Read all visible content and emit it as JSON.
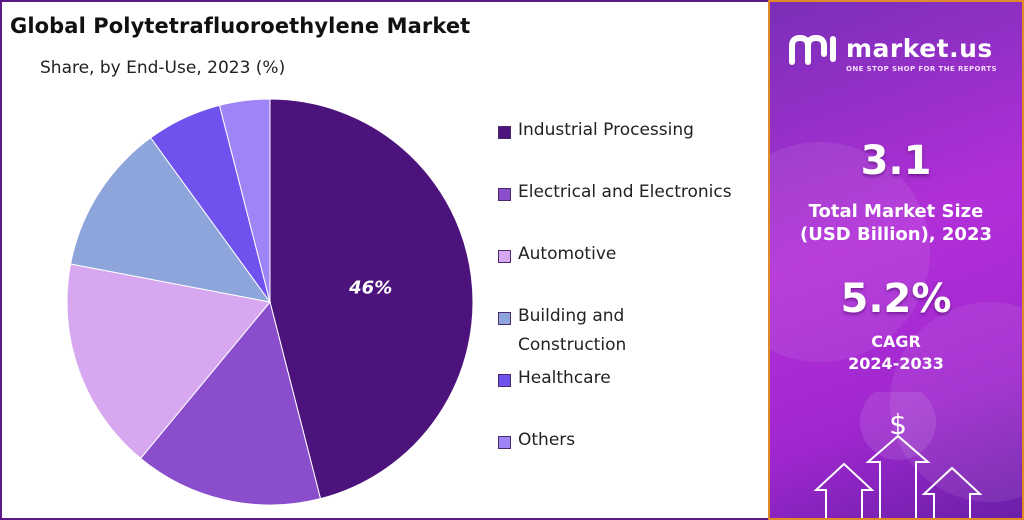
{
  "chart_data": {
    "type": "pie",
    "title": "Global Polytetrafluoroethylene Market",
    "subtitle": "Share, by End-Use, 2023 (%)",
    "categories": [
      "Industrial Processing",
      "Electrical and Electronics",
      "Automotive",
      "Building and Construction",
      "Healthcare",
      "Others"
    ],
    "values": [
      46,
      15,
      17,
      12,
      6,
      4
    ],
    "data_labels": [
      "46%",
      "",
      "",
      "",
      "",
      ""
    ],
    "colors": [
      "#4c137c",
      "#8a4dcc",
      "#d7a8f0",
      "#8ea5dc",
      "#6f52ee",
      "#9e84f7"
    ],
    "legend_position": "right"
  },
  "legend": [
    {
      "label": "Industrial Processing"
    },
    {
      "label": "Electrical and Electronics"
    },
    {
      "label": "Automotive"
    },
    {
      "label": "Building and\nConstruction"
    },
    {
      "label": "Healthcare"
    },
    {
      "label": "Others"
    }
  ],
  "brand": {
    "name": "market.us",
    "tagline": "ONE STOP SHOP FOR THE REPORTS"
  },
  "stats": {
    "market_size_value": "3.1",
    "market_size_label_line1": "Total Market Size",
    "market_size_label_line2": "(USD Billion), 2023",
    "cagr_value": "5.2%",
    "cagr_label_line1": "CAGR",
    "cagr_label_line2": "2024-2033",
    "currency_symbol": "$"
  },
  "colors": {
    "panel_gradient_start": "#7a2fb8",
    "panel_gradient_end": "#a027cf",
    "panel_border": "#e08a2a"
  },
  "icons": [
    "market-us-logo-icon",
    "dollar-icon",
    "arrow-up-icon"
  ]
}
